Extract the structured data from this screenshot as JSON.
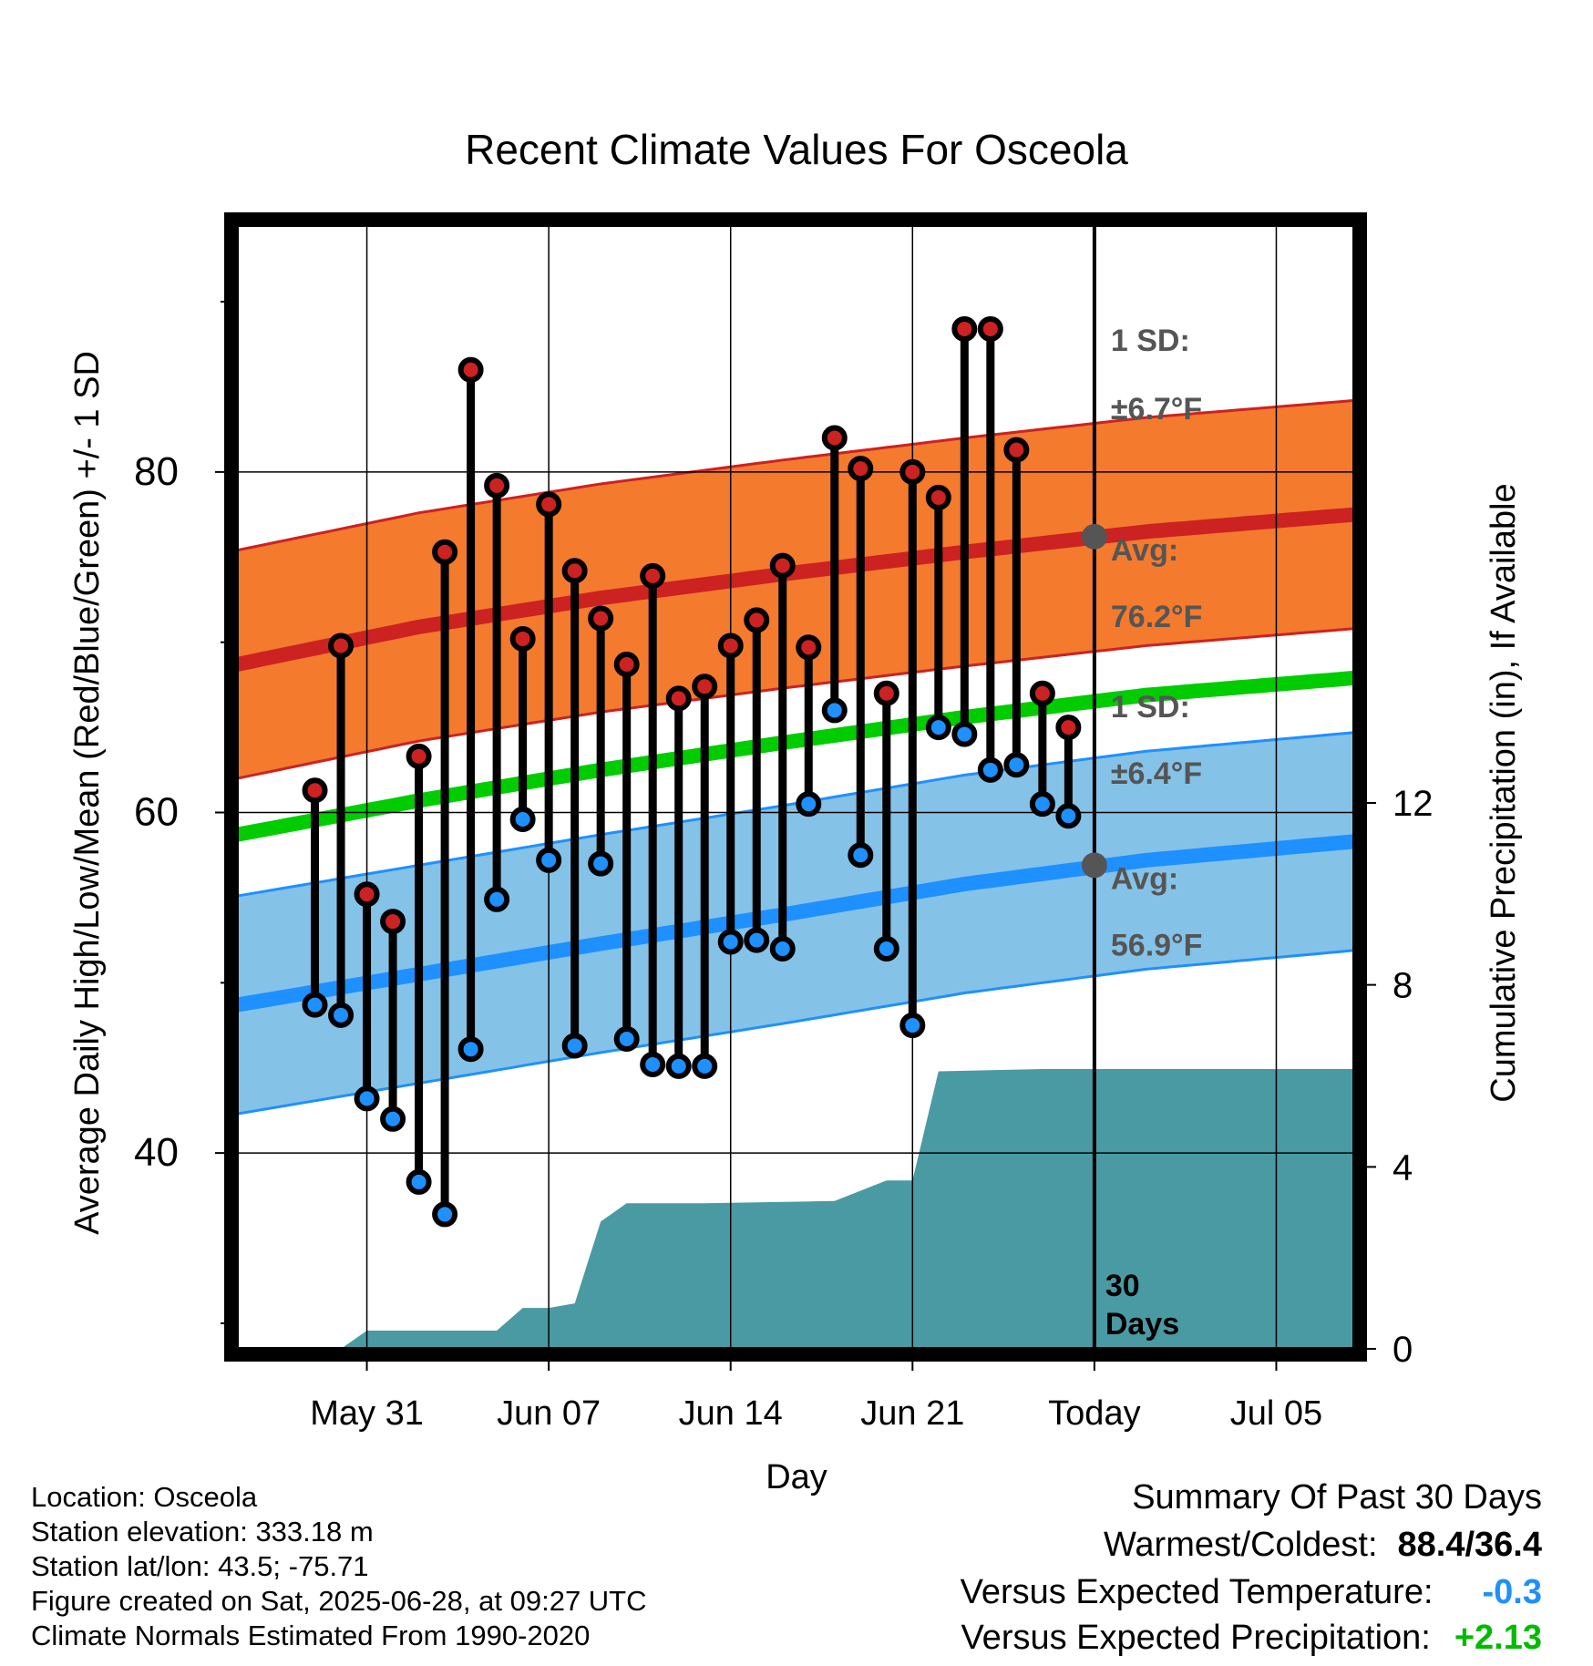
{
  "chart_data": {
    "type": "line",
    "title": "Recent Climate Values For Osceola",
    "xlabel": "Day",
    "ylabel": "Average Daily High/Low/Mean (Red/Blue/Green) +/- 1 SD",
    "y2label": "Cumulative Precipitation (in), If Available",
    "xlim": [
      "2025-05-26",
      "2025-07-08"
    ],
    "ylim": [
      28.5,
      94.5
    ],
    "y2lim": [
      0,
      24.7
    ],
    "x_ticks": [
      {
        "date": "2025-05-31",
        "label": "May 31"
      },
      {
        "date": "2025-06-07",
        "label": "Jun 07"
      },
      {
        "date": "2025-06-14",
        "label": "Jun 14"
      },
      {
        "date": "2025-06-21",
        "label": "Jun 21"
      },
      {
        "date": "2025-06-28",
        "label": "Today"
      },
      {
        "date": "2025-07-05",
        "label": "Jul 05"
      }
    ],
    "y_ticks": [
      40,
      60,
      80
    ],
    "y_minor_ticks": [
      30,
      50,
      70,
      90
    ],
    "y2_ticks": [
      0,
      4,
      8,
      12
    ],
    "grid": true,
    "colors": {
      "high": "#cc2222",
      "low": "#1e90ff",
      "mean": "#00cc00",
      "high_band": "#f47a2e",
      "low_band": "#85c2e8",
      "precip": "#4a9aa3",
      "today_marker": "#555555"
    },
    "daily": [
      {
        "date": "2025-05-29",
        "high": 61.3,
        "low": 48.7
      },
      {
        "date": "2025-05-30",
        "high": 69.8,
        "low": 48.1
      },
      {
        "date": "2025-05-31",
        "high": 55.2,
        "low": 43.2
      },
      {
        "date": "2025-06-01",
        "high": 53.6,
        "low": 42.0
      },
      {
        "date": "2025-06-02",
        "high": 63.3,
        "low": 38.3
      },
      {
        "date": "2025-06-03",
        "high": 75.3,
        "low": 36.4
      },
      {
        "date": "2025-06-04",
        "high": 86.0,
        "low": 46.1
      },
      {
        "date": "2025-06-05",
        "high": 79.2,
        "low": 54.9
      },
      {
        "date": "2025-06-06",
        "high": 70.2,
        "low": 59.6
      },
      {
        "date": "2025-06-07",
        "high": 78.1,
        "low": 57.2
      },
      {
        "date": "2025-06-08",
        "high": 74.2,
        "low": 46.3
      },
      {
        "date": "2025-06-09",
        "high": 71.4,
        "low": 57.0
      },
      {
        "date": "2025-06-10",
        "high": 68.7,
        "low": 46.7
      },
      {
        "date": "2025-06-11",
        "high": 73.9,
        "low": 45.2
      },
      {
        "date": "2025-06-12",
        "high": 66.7,
        "low": 45.1
      },
      {
        "date": "2025-06-13",
        "high": 67.4,
        "low": 45.1
      },
      {
        "date": "2025-06-14",
        "high": 69.8,
        "low": 52.4
      },
      {
        "date": "2025-06-15",
        "high": 71.3,
        "low": 52.5
      },
      {
        "date": "2025-06-16",
        "high": 74.5,
        "low": 52.0
      },
      {
        "date": "2025-06-17",
        "high": 69.7,
        "low": 60.5
      },
      {
        "date": "2025-06-18",
        "high": 82.0,
        "low": 66.0
      },
      {
        "date": "2025-06-19",
        "high": 80.2,
        "low": 57.5
      },
      {
        "date": "2025-06-20",
        "high": 67.0,
        "low": 52.0
      },
      {
        "date": "2025-06-21",
        "high": 80.0,
        "low": 47.5
      },
      {
        "date": "2025-06-22",
        "high": 78.5,
        "low": 65.0
      },
      {
        "date": "2025-06-23",
        "high": 88.4,
        "low": 64.6
      },
      {
        "date": "2025-06-24",
        "high": 88.4,
        "low": 62.5
      },
      {
        "date": "2025-06-25",
        "high": 81.3,
        "low": 62.8
      },
      {
        "date": "2025-06-26",
        "high": 67.0,
        "low": 60.5
      },
      {
        "date": "2025-06-27",
        "high": 65.0,
        "low": 59.8
      }
    ],
    "normals": [
      {
        "date": "2025-05-26",
        "high_avg": 68.7,
        "low_avg": 48.7,
        "mean": 58.7
      },
      {
        "date": "2025-06-02",
        "high_avg": 70.9,
        "low_avg": 50.5,
        "mean": 60.7
      },
      {
        "date": "2025-06-09",
        "high_avg": 72.6,
        "low_avg": 52.3,
        "mean": 62.5
      },
      {
        "date": "2025-06-16",
        "high_avg": 74.0,
        "low_avg": 54.0,
        "mean": 64.1
      },
      {
        "date": "2025-06-23",
        "high_avg": 75.3,
        "low_avg": 55.8,
        "mean": 65.6
      },
      {
        "date": "2025-06-30",
        "high_avg": 76.5,
        "low_avg": 57.2,
        "mean": 66.9
      },
      {
        "date": "2025-07-08",
        "high_avg": 77.5,
        "low_avg": 58.3,
        "mean": 67.9
      }
    ],
    "high_sd": 6.7,
    "low_sd": 6.4,
    "cumulative_precip": [
      {
        "date": "2025-05-29",
        "value": 0.0
      },
      {
        "date": "2025-05-30",
        "value": 0.0
      },
      {
        "date": "2025-05-31",
        "value": 0.4
      },
      {
        "date": "2025-06-05",
        "value": 0.4
      },
      {
        "date": "2025-06-06",
        "value": 0.9
      },
      {
        "date": "2025-06-07",
        "value": 0.9
      },
      {
        "date": "2025-06-08",
        "value": 1.0
      },
      {
        "date": "2025-06-09",
        "value": 2.8
      },
      {
        "date": "2025-06-10",
        "value": 3.2
      },
      {
        "date": "2025-06-13",
        "value": 3.2
      },
      {
        "date": "2025-06-18",
        "value": 3.25
      },
      {
        "date": "2025-06-20",
        "value": 3.7
      },
      {
        "date": "2025-06-21",
        "value": 3.7
      },
      {
        "date": "2025-06-22",
        "value": 6.1
      },
      {
        "date": "2025-06-26",
        "value": 6.15
      },
      {
        "date": "2025-07-08",
        "value": 6.15
      }
    ],
    "annotations": {
      "high_sd_label": "1 SD:",
      "high_sd_value": "±6.7°F",
      "high_avg_label": "Avg:",
      "high_avg_value": "76.2°F",
      "low_sd_label": "1 SD:",
      "low_sd_value": "±6.4°F",
      "low_avg_label": "Avg:",
      "low_avg_value": "56.9°F",
      "days_number": "30",
      "days_word": "Days"
    },
    "today_markers": {
      "high": 76.2,
      "low": 56.9
    }
  },
  "footer": [
    "Location: Osceola",
    "Station elevation: 333.18 m",
    "Station lat/lon: 43.5; -75.71",
    "Figure created on Sat, 2025-06-28, at 09:27 UTC",
    "Climate Normals Estimated From 1990-2020"
  ],
  "summary": {
    "title": "Summary Of Past 30 Days",
    "warm_cold_label": "Warmest/Coldest:",
    "warm_cold_value": "88.4/36.4",
    "temp_label": "Versus Expected Temperature:",
    "temp_value": "-0.3",
    "temp_color": "#1e90ff",
    "precip_label": "Versus Expected Precipitation:",
    "precip_value": "+2.13",
    "precip_color": "#00bb00"
  }
}
